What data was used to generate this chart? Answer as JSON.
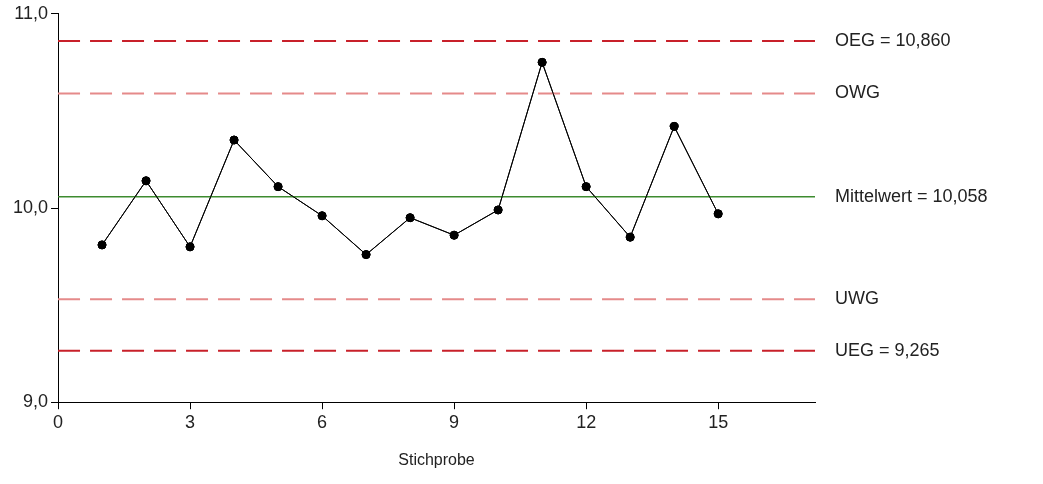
{
  "chart_data": {
    "type": "line",
    "xlabel": "Stichprobe",
    "x": [
      1,
      2,
      3,
      4,
      5,
      6,
      7,
      8,
      9,
      10,
      11,
      12,
      13,
      14,
      15
    ],
    "series": [
      {
        "color": "#000000",
        "values": [
          9.81,
          10.14,
          9.8,
          10.35,
          10.11,
          9.96,
          9.76,
          9.95,
          9.86,
          9.99,
          10.75,
          10.11,
          9.85,
          10.42,
          9.97
        ]
      }
    ],
    "xlim": [
      0,
      17.2
    ],
    "xticks": [
      0,
      3,
      6,
      9,
      12,
      15
    ],
    "ylim": [
      9,
      11
    ],
    "yticks": [
      {
        "value": 9,
        "label": "9,0"
      },
      {
        "value": 10,
        "label": "10,0"
      },
      {
        "value": 11,
        "label": "11,0"
      }
    ],
    "ref_lines": [
      {
        "axis": "y",
        "value": 10.86,
        "label": "OEG = 10,860",
        "color": "#c8202a",
        "line_style": "dashed"
      },
      {
        "axis": "y",
        "value": 10.59,
        "label": "OWG",
        "color": "#e58a8a",
        "line_style": "dashed"
      },
      {
        "axis": "y",
        "value": 10.058,
        "label": "Mittelwert = 10,058",
        "color": "#3d8b2f",
        "line_style": "solid"
      },
      {
        "axis": "y",
        "value": 9.53,
        "label": "UWG",
        "color": "#e58a8a",
        "line_style": "dashed"
      },
      {
        "axis": "y",
        "value": 9.265,
        "label": "UEG = 9,265",
        "color": "#c8202a",
        "line_style": "dashed"
      }
    ],
    "grid": false,
    "legend": false,
    "marker": "circle",
    "line_style": "solid"
  }
}
